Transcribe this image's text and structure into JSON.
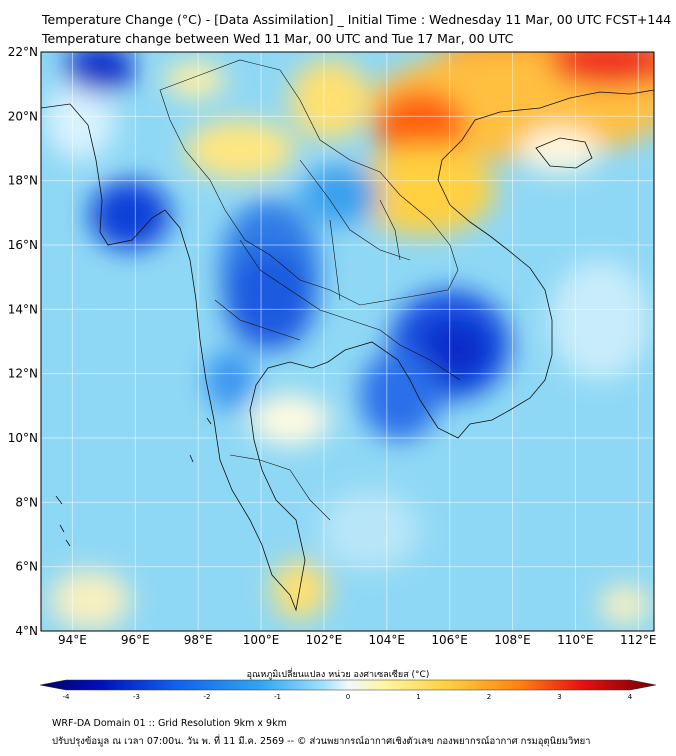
{
  "header": {
    "title_line1": "Temperature Change (°C) - [Data Assimilation] _ Initial Time : Wednesday 11 Mar, 00 UTC FCST+144",
    "title_line2": "Temperature change between Wed 11 Mar, 00 UTC and Tue 17 Mar, 00 UTC"
  },
  "map": {
    "lat_labels": [
      "22°N",
      "20°N",
      "18°N",
      "16°N",
      "14°N",
      "12°N",
      "10°N",
      "8°N",
      "6°N",
      "4°N"
    ],
    "lon_labels": [
      "94°E",
      "96°E",
      "98°E",
      "100°E",
      "102°E",
      "104°E",
      "106°E",
      "108°E",
      "110°E",
      "112°E"
    ],
    "lat_range": [
      4,
      22
    ],
    "lon_range": [
      93,
      112.5
    ],
    "grid": true
  },
  "colorbar": {
    "label": "อุณหภูมิเปลี่ยนแปลง หน่วย องศาเซลเซียส (°C)",
    "ticks": [
      "-4",
      "-3",
      "-2",
      "-1",
      "0",
      "1",
      "2",
      "3",
      "4"
    ],
    "range": [
      -4,
      4
    ],
    "colors": [
      "#000060",
      "#0010c0",
      "#1060f0",
      "#30a8f0",
      "#a0e0ff",
      "#f0f8ff",
      "#fff6a0",
      "#ffd040",
      "#ff8010",
      "#e81010",
      "#700000"
    ]
  },
  "footer": {
    "line1": "WRF-DA Domain 01 :: Grid Resolution 9km x 9km",
    "line2": "ปรับปรุงข้อมูล ณ เวลา 07:00น. วัน พ. ที่ 11 มี.ค. 2569 -- © ส่วนพยากรณ์อากาศเชิงตัวเลข กองพยากรณ์อากาศ กรมอุตุนิยมวิทยา"
  }
}
